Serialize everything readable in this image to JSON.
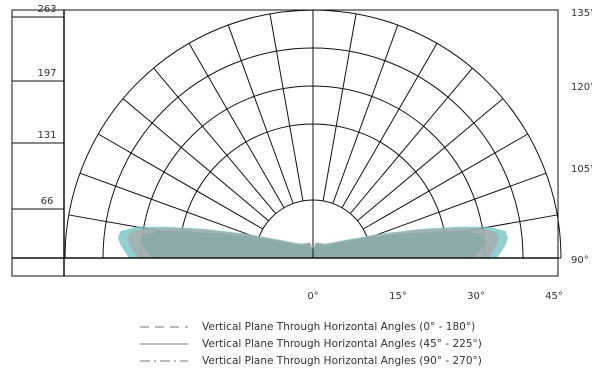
{
  "chart_data": {
    "type": "polar-candela",
    "r_axis_labels": [
      "66",
      "131",
      "197",
      "263"
    ],
    "r_axis_values": [
      66,
      131,
      197,
      263
    ],
    "r_max": 263,
    "angle_labels_bottom": [
      "0°",
      "15°",
      "30°",
      "45°"
    ],
    "angle_labels_right": [
      "90°",
      "105°",
      "120°",
      "135°"
    ],
    "series": [
      {
        "name": "Vertical Plane Through Horizontal Angles (0° - 180°)",
        "line_style": "dashed",
        "color": "#6bc0c0",
        "points": [
          [
            0,
            8
          ],
          [
            10,
            17
          ],
          [
            20,
            17
          ],
          [
            30,
            18
          ],
          [
            40,
            20
          ],
          [
            50,
            25
          ],
          [
            55,
            30
          ],
          [
            60,
            38
          ],
          [
            65,
            50
          ],
          [
            70,
            75
          ],
          [
            75,
            120
          ],
          [
            78,
            160
          ],
          [
            80,
            190
          ],
          [
            82,
            206
          ],
          [
            84,
            208
          ],
          [
            86,
            205
          ],
          [
            88,
            200
          ],
          [
            90,
            195
          ]
        ]
      },
      {
        "name": "Vertical Plane Through Horizontal Angles (45° - 225°)",
        "line_style": "solid",
        "color": "#2aa9a9",
        "points": [
          [
            0,
            5
          ],
          [
            10,
            15
          ],
          [
            20,
            16
          ],
          [
            30,
            16
          ],
          [
            40,
            18
          ],
          [
            50,
            22
          ],
          [
            55,
            26
          ],
          [
            60,
            33
          ],
          [
            65,
            44
          ],
          [
            70,
            64
          ],
          [
            75,
            100
          ],
          [
            78,
            135
          ],
          [
            80,
            165
          ],
          [
            82,
            180
          ],
          [
            84,
            184
          ],
          [
            86,
            180
          ],
          [
            88,
            176
          ],
          [
            90,
            170
          ]
        ]
      },
      {
        "name": "Vertical Plane Through Horizontal Angles (90° - 270°)",
        "line_style": "dash-dot",
        "color": "#a9a9a9",
        "points": [
          [
            0,
            7
          ],
          [
            10,
            17
          ],
          [
            20,
            17
          ],
          [
            30,
            18
          ],
          [
            40,
            19
          ],
          [
            50,
            24
          ],
          [
            55,
            29
          ],
          [
            60,
            36
          ],
          [
            65,
            48
          ],
          [
            70,
            72
          ],
          [
            75,
            115
          ],
          [
            78,
            152
          ],
          [
            80,
            182
          ],
          [
            82,
            196
          ],
          [
            84,
            198
          ],
          [
            86,
            195
          ],
          [
            88,
            191
          ],
          [
            90,
            186
          ]
        ]
      }
    ]
  }
}
